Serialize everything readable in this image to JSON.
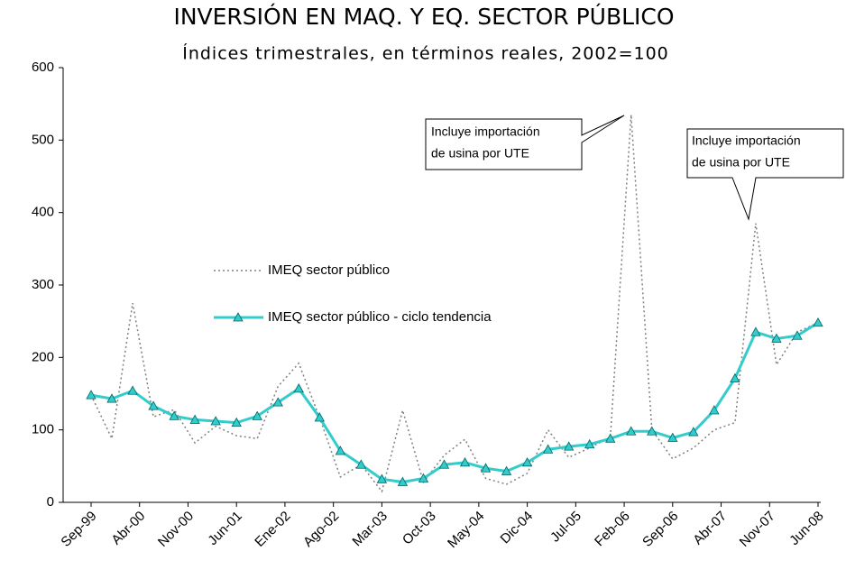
{
  "chart_data": {
    "type": "line",
    "title": "INVERSIÓN EN MAQ. Y EQ. SECTOR PÚBLICO",
    "subtitle": "Índices trimestrales, en términos reales, 2002=100",
    "x": [
      "Sep-99",
      "Dic-99",
      "Mar-00",
      "Jun-00",
      "Sep-00",
      "Dic-00",
      "Mar-01",
      "Jun-01",
      "Sep-01",
      "Dic-01",
      "Mar-02",
      "Jun-02",
      "Sep-02",
      "Dic-02",
      "Mar-03",
      "Jun-03",
      "Sep-03",
      "Dic-03",
      "Mar-04",
      "Jun-04",
      "Sep-04",
      "Dic-04",
      "Mar-05",
      "Jun-05",
      "Sep-05",
      "Dic-05",
      "Mar-06",
      "Jun-06",
      "Sep-06",
      "Dic-06",
      "Mar-07",
      "Jun-07",
      "Sep-07",
      "Dic-07",
      "Mar-08",
      "Jun-08"
    ],
    "series": [
      {
        "name": "IMEQ sector público",
        "color": "#808080",
        "dashed": true,
        "values": [
          148,
          88,
          275,
          118,
          128,
          82,
          105,
          92,
          88,
          160,
          192,
          117,
          35,
          52,
          15,
          127,
          28,
          65,
          87,
          33,
          25,
          40,
          100,
          62,
          75,
          90,
          535,
          100,
          60,
          75,
          100,
          110,
          385,
          190,
          235,
          248
        ]
      },
      {
        "name": "IMEQ sector público - ciclo tendencia",
        "color": "#33cccc",
        "marker": "triangle",
        "values": [
          148,
          143,
          154,
          133,
          119,
          114,
          112,
          110,
          119,
          138,
          157,
          117,
          71,
          52,
          32,
          28,
          33,
          52,
          55,
          47,
          43,
          55,
          73,
          77,
          80,
          88,
          98,
          98,
          89,
          97,
          127,
          171,
          235,
          226,
          230,
          248
        ]
      }
    ],
    "xlim": [
      "Sep-99",
      "Jun-08"
    ],
    "xticks": [
      "Sep-99",
      "Abr-00",
      "Nov-00",
      "Jun-01",
      "Ene-02",
      "Ago-02",
      "Mar-03",
      "Oct-03",
      "May-04",
      "Dic-04",
      "Jul-05",
      "Feb-06",
      "Sep-06",
      "Abr-07",
      "Nov-07",
      "Jun-08"
    ],
    "ylim": [
      0,
      600
    ],
    "yticks": [
      0,
      100,
      200,
      300,
      400,
      500,
      600
    ],
    "grid": false,
    "annotations": [
      {
        "lines": [
          "Incluye importación",
          "de usina por UTE"
        ]
      },
      {
        "lines": [
          "Incluye importación",
          "de usina por UTE"
        ]
      }
    ]
  }
}
